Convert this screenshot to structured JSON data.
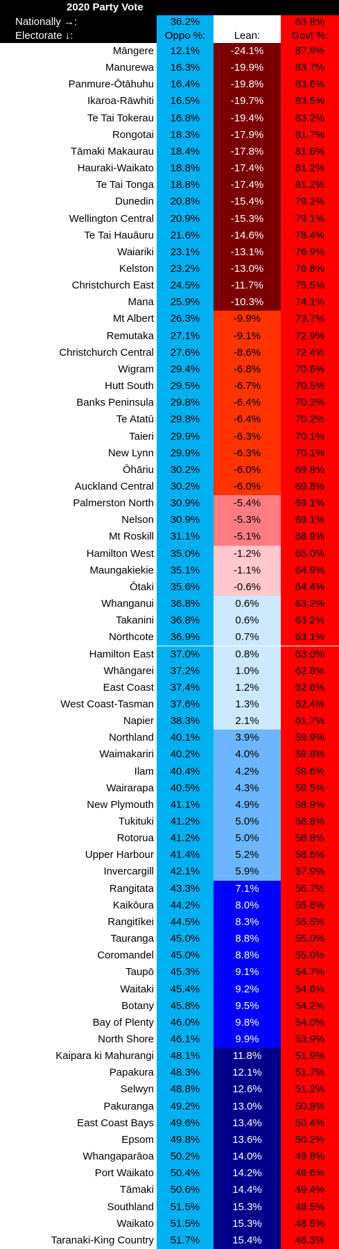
{
  "title": "2020 Party Vote",
  "nationally": {
    "label": "Nationally →:",
    "oppo": "36.2%",
    "govt": "63.8%"
  },
  "header": {
    "label": "Electorate ↓:",
    "oppo": "Oppo %:",
    "lean": "Lean:",
    "govt": "Govt %:"
  },
  "colors": {
    "oppo": "#00b0f0",
    "govt": "#ff0000",
    "lean_bands": [
      {
        "max": -10.0,
        "bg": "#7b0000",
        "fg": "#ffffff"
      },
      {
        "max": -6.0,
        "bg": "#ff3300",
        "fg": "#000000"
      },
      {
        "max": -5.0,
        "bg": "#ff7c80",
        "fg": "#000000"
      },
      {
        "max": 0.0,
        "bg": "#ffc7ce",
        "fg": "#000000"
      },
      {
        "max": 3.0,
        "bg": "#cce9ff",
        "fg": "#000000"
      },
      {
        "max": 7.0,
        "bg": "#6cb6ff",
        "fg": "#000000"
      },
      {
        "max": 10.0,
        "bg": "#0000ff",
        "fg": "#ffffff"
      },
      {
        "max": 100.0,
        "bg": "#00008b",
        "fg": "#ffffff"
      }
    ]
  },
  "chart_data": {
    "type": "table",
    "title": "2020 Party Vote",
    "columns": [
      "Electorate",
      "Oppo %",
      "Lean",
      "Govt %"
    ],
    "rows": [
      {
        "name": "Māngere",
        "oppo": "12.1%",
        "lean": "-24.1%",
        "govt": "87.9%",
        "lean_value": -24.1
      },
      {
        "name": "Manurewa",
        "oppo": "16.3%",
        "lean": "-19.9%",
        "govt": "83.7%",
        "lean_value": -19.9
      },
      {
        "name": "Panmure-Ōtāhuhu",
        "oppo": "16.4%",
        "lean": "-19.8%",
        "govt": "83.6%",
        "lean_value": -19.8
      },
      {
        "name": "Ikaroa-Rāwhiti",
        "oppo": "16.5%",
        "lean": "-19.7%",
        "govt": "83.5%",
        "lean_value": -19.7
      },
      {
        "name": "Te Tai Tokerau",
        "oppo": "16.8%",
        "lean": "-19.4%",
        "govt": "83.2%",
        "lean_value": -19.4
      },
      {
        "name": "Rongotai",
        "oppo": "18.3%",
        "lean": "-17.9%",
        "govt": "81.7%",
        "lean_value": -17.9
      },
      {
        "name": "Tāmaki Makaurau",
        "oppo": "18.4%",
        "lean": "-17.8%",
        "govt": "81.6%",
        "lean_value": -17.8
      },
      {
        "name": "Hauraki-Waikato",
        "oppo": "18.8%",
        "lean": "-17.4%",
        "govt": "81.2%",
        "lean_value": -17.4
      },
      {
        "name": "Te Tai Tonga",
        "oppo": "18.8%",
        "lean": "-17.4%",
        "govt": "81.2%",
        "lean_value": -17.4
      },
      {
        "name": "Dunedin",
        "oppo": "20.8%",
        "lean": "-15.4%",
        "govt": "79.2%",
        "lean_value": -15.4
      },
      {
        "name": "Wellington Central",
        "oppo": "20.9%",
        "lean": "-15.3%",
        "govt": "79.1%",
        "lean_value": -15.3
      },
      {
        "name": "Te Tai Hauāuru",
        "oppo": "21.6%",
        "lean": "-14.6%",
        "govt": "78.4%",
        "lean_value": -14.6
      },
      {
        "name": "Waiariki",
        "oppo": "23.1%",
        "lean": "-13.1%",
        "govt": "76.9%",
        "lean_value": -13.1
      },
      {
        "name": "Kelston",
        "oppo": "23.2%",
        "lean": "-13.0%",
        "govt": "76.8%",
        "lean_value": -13.0
      },
      {
        "name": "Christchurch East",
        "oppo": "24.5%",
        "lean": "-11.7%",
        "govt": "75.5%",
        "lean_value": -11.7
      },
      {
        "name": "Mana",
        "oppo": "25.9%",
        "lean": "-10.3%",
        "govt": "74.1%",
        "lean_value": -10.3
      },
      {
        "name": "Mt Albert",
        "oppo": "26.3%",
        "lean": "-9.9%",
        "govt": "73.7%",
        "lean_value": -9.9
      },
      {
        "name": "Remutaka",
        "oppo": "27.1%",
        "lean": "-9.1%",
        "govt": "72.9%",
        "lean_value": -9.1
      },
      {
        "name": "Christchurch Central",
        "oppo": "27.6%",
        "lean": "-8.6%",
        "govt": "72.4%",
        "lean_value": -8.6
      },
      {
        "name": "Wigram",
        "oppo": "29.4%",
        "lean": "-6.8%",
        "govt": "70.6%",
        "lean_value": -6.8
      },
      {
        "name": "Hutt South",
        "oppo": "29.5%",
        "lean": "-6.7%",
        "govt": "70.5%",
        "lean_value": -6.7
      },
      {
        "name": "Banks Peninsula",
        "oppo": "29.8%",
        "lean": "-6.4%",
        "govt": "70.2%",
        "lean_value": -6.4
      },
      {
        "name": "Te Atatū",
        "oppo": "29.8%",
        "lean": "-6.4%",
        "govt": "70.2%",
        "lean_value": -6.4
      },
      {
        "name": "Taieri",
        "oppo": "29.9%",
        "lean": "-6.3%",
        "govt": "70.1%",
        "lean_value": -6.3
      },
      {
        "name": "New Lynn",
        "oppo": "29.9%",
        "lean": "-6.3%",
        "govt": "70.1%",
        "lean_value": -6.3
      },
      {
        "name": "Ōhāriu",
        "oppo": "30.2%",
        "lean": "-6.0%",
        "govt": "69.8%",
        "lean_value": -6.0
      },
      {
        "name": "Auckland Central",
        "oppo": "30.2%",
        "lean": "-6.0%",
        "govt": "69.8%",
        "lean_value": -6.0
      },
      {
        "name": "Palmerston North",
        "oppo": "30.9%",
        "lean": "-5.4%",
        "govt": "69.1%",
        "lean_value": -5.4
      },
      {
        "name": "Nelson",
        "oppo": "30.9%",
        "lean": "-5.3%",
        "govt": "69.1%",
        "lean_value": -5.3
      },
      {
        "name": "Mt Roskill",
        "oppo": "31.1%",
        "lean": "-5.1%",
        "govt": "68.9%",
        "lean_value": -5.1
      },
      {
        "name": "Hamilton West",
        "oppo": "35.0%",
        "lean": "-1.2%",
        "govt": "65.0%",
        "lean_value": -1.2
      },
      {
        "name": "Maungakiekie",
        "oppo": "35.1%",
        "lean": "-1.1%",
        "govt": "64.9%",
        "lean_value": -1.1
      },
      {
        "name": "Ōtaki",
        "oppo": "35.6%",
        "lean": "-0.6%",
        "govt": "64.4%",
        "lean_value": -0.6
      },
      {
        "name": "Whanganui",
        "oppo": "36.8%",
        "lean": "0.6%",
        "govt": "63.2%",
        "lean_value": 0.6
      },
      {
        "name": "Takanini",
        "oppo": "36.8%",
        "lean": "0.6%",
        "govt": "63.2%",
        "lean_value": 0.6
      },
      {
        "name": "Northcote",
        "oppo": "36.9%",
        "lean": "0.7%",
        "govt": "63.1%",
        "lean_value": 0.7
      },
      {
        "name": "Hamilton East",
        "oppo": "37.0%",
        "lean": "0.8%",
        "govt": "63.0%",
        "lean_value": 0.8
      },
      {
        "name": "Whāngarei",
        "oppo": "37.2%",
        "lean": "1.0%",
        "govt": "62.8%",
        "lean_value": 1.0
      },
      {
        "name": "East Coast",
        "oppo": "37.4%",
        "lean": "1.2%",
        "govt": "62.6%",
        "lean_value": 1.2
      },
      {
        "name": "West Coast-Tasman",
        "oppo": "37.6%",
        "lean": "1.3%",
        "govt": "62.4%",
        "lean_value": 1.3
      },
      {
        "name": "Napier",
        "oppo": "38.3%",
        "lean": "2.1%",
        "govt": "61.7%",
        "lean_value": 2.1
      },
      {
        "name": "Northland",
        "oppo": "40.1%",
        "lean": "3.9%",
        "govt": "59.9%",
        "lean_value": 3.9
      },
      {
        "name": "Waimakariri",
        "oppo": "40.2%",
        "lean": "4.0%",
        "govt": "59.8%",
        "lean_value": 4.0
      },
      {
        "name": "Ilam",
        "oppo": "40.4%",
        "lean": "4.2%",
        "govt": "59.6%",
        "lean_value": 4.2
      },
      {
        "name": "Wairarapa",
        "oppo": "40.5%",
        "lean": "4.3%",
        "govt": "59.5%",
        "lean_value": 4.3
      },
      {
        "name": "New Plymouth",
        "oppo": "41.1%",
        "lean": "4.9%",
        "govt": "58.9%",
        "lean_value": 4.9
      },
      {
        "name": "Tukituki",
        "oppo": "41.2%",
        "lean": "5.0%",
        "govt": "58.8%",
        "lean_value": 5.0
      },
      {
        "name": "Rotorua",
        "oppo": "41.2%",
        "lean": "5.0%",
        "govt": "58.8%",
        "lean_value": 5.0
      },
      {
        "name": "Upper Harbour",
        "oppo": "41.4%",
        "lean": "5.2%",
        "govt": "58.6%",
        "lean_value": 5.2
      },
      {
        "name": "Invercargill",
        "oppo": "42.1%",
        "lean": "5.9%",
        "govt": "57.9%",
        "lean_value": 5.9
      },
      {
        "name": "Rangitata",
        "oppo": "43.3%",
        "lean": "7.1%",
        "govt": "56.7%",
        "lean_value": 7.1
      },
      {
        "name": "Kaikōura",
        "oppo": "44.2%",
        "lean": "8.0%",
        "govt": "55.8%",
        "lean_value": 8.0
      },
      {
        "name": "Rangitīkei",
        "oppo": "44.5%",
        "lean": "8.3%",
        "govt": "55.5%",
        "lean_value": 8.3
      },
      {
        "name": "Tauranga",
        "oppo": "45.0%",
        "lean": "8.8%",
        "govt": "55.0%",
        "lean_value": 8.8
      },
      {
        "name": "Coromandel",
        "oppo": "45.0%",
        "lean": "8.8%",
        "govt": "55.0%",
        "lean_value": 8.8
      },
      {
        "name": "Taupō",
        "oppo": "45.3%",
        "lean": "9.1%",
        "govt": "54.7%",
        "lean_value": 9.1
      },
      {
        "name": "Waitaki",
        "oppo": "45.4%",
        "lean": "9.2%",
        "govt": "54.6%",
        "lean_value": 9.2
      },
      {
        "name": "Botany",
        "oppo": "45.8%",
        "lean": "9.5%",
        "govt": "54.2%",
        "lean_value": 9.5
      },
      {
        "name": "Bay of Plenty",
        "oppo": "46.0%",
        "lean": "9.8%",
        "govt": "54.0%",
        "lean_value": 9.8
      },
      {
        "name": "North Shore",
        "oppo": "46.1%",
        "lean": "9.9%",
        "govt": "53.9%",
        "lean_value": 9.9
      },
      {
        "name": "Kaipara ki Mahurangi",
        "oppo": "48.1%",
        "lean": "11.8%",
        "govt": "51.9%",
        "lean_value": 11.8
      },
      {
        "name": "Papakura",
        "oppo": "48.3%",
        "lean": "12.1%",
        "govt": "51.7%",
        "lean_value": 12.1
      },
      {
        "name": "Selwyn",
        "oppo": "48.8%",
        "lean": "12.6%",
        "govt": "51.2%",
        "lean_value": 12.6
      },
      {
        "name": "Pakuranga",
        "oppo": "49.2%",
        "lean": "13.0%",
        "govt": "50.8%",
        "lean_value": 13.0
      },
      {
        "name": "East Coast Bays",
        "oppo": "49.6%",
        "lean": "13.4%",
        "govt": "50.4%",
        "lean_value": 13.4
      },
      {
        "name": "Epsom",
        "oppo": "49.8%",
        "lean": "13.6%",
        "govt": "50.2%",
        "lean_value": 13.6
      },
      {
        "name": "Whangaparāoa",
        "oppo": "50.2%",
        "lean": "14.0%",
        "govt": "49.8%",
        "lean_value": 14.0
      },
      {
        "name": "Port Waikato",
        "oppo": "50.4%",
        "lean": "14.2%",
        "govt": "49.6%",
        "lean_value": 14.2
      },
      {
        "name": "Tāmaki",
        "oppo": "50.6%",
        "lean": "14.4%",
        "govt": "49.4%",
        "lean_value": 14.4
      },
      {
        "name": "Southland",
        "oppo": "51.5%",
        "lean": "15.3%",
        "govt": "48.5%",
        "lean_value": 15.3
      },
      {
        "name": "Waikato",
        "oppo": "51.5%",
        "lean": "15.3%",
        "govt": "48.5%",
        "lean_value": 15.3
      },
      {
        "name": "Taranaki-King Country",
        "oppo": "51.7%",
        "lean": "15.4%",
        "govt": "48.3%",
        "lean_value": 15.4
      }
    ]
  }
}
